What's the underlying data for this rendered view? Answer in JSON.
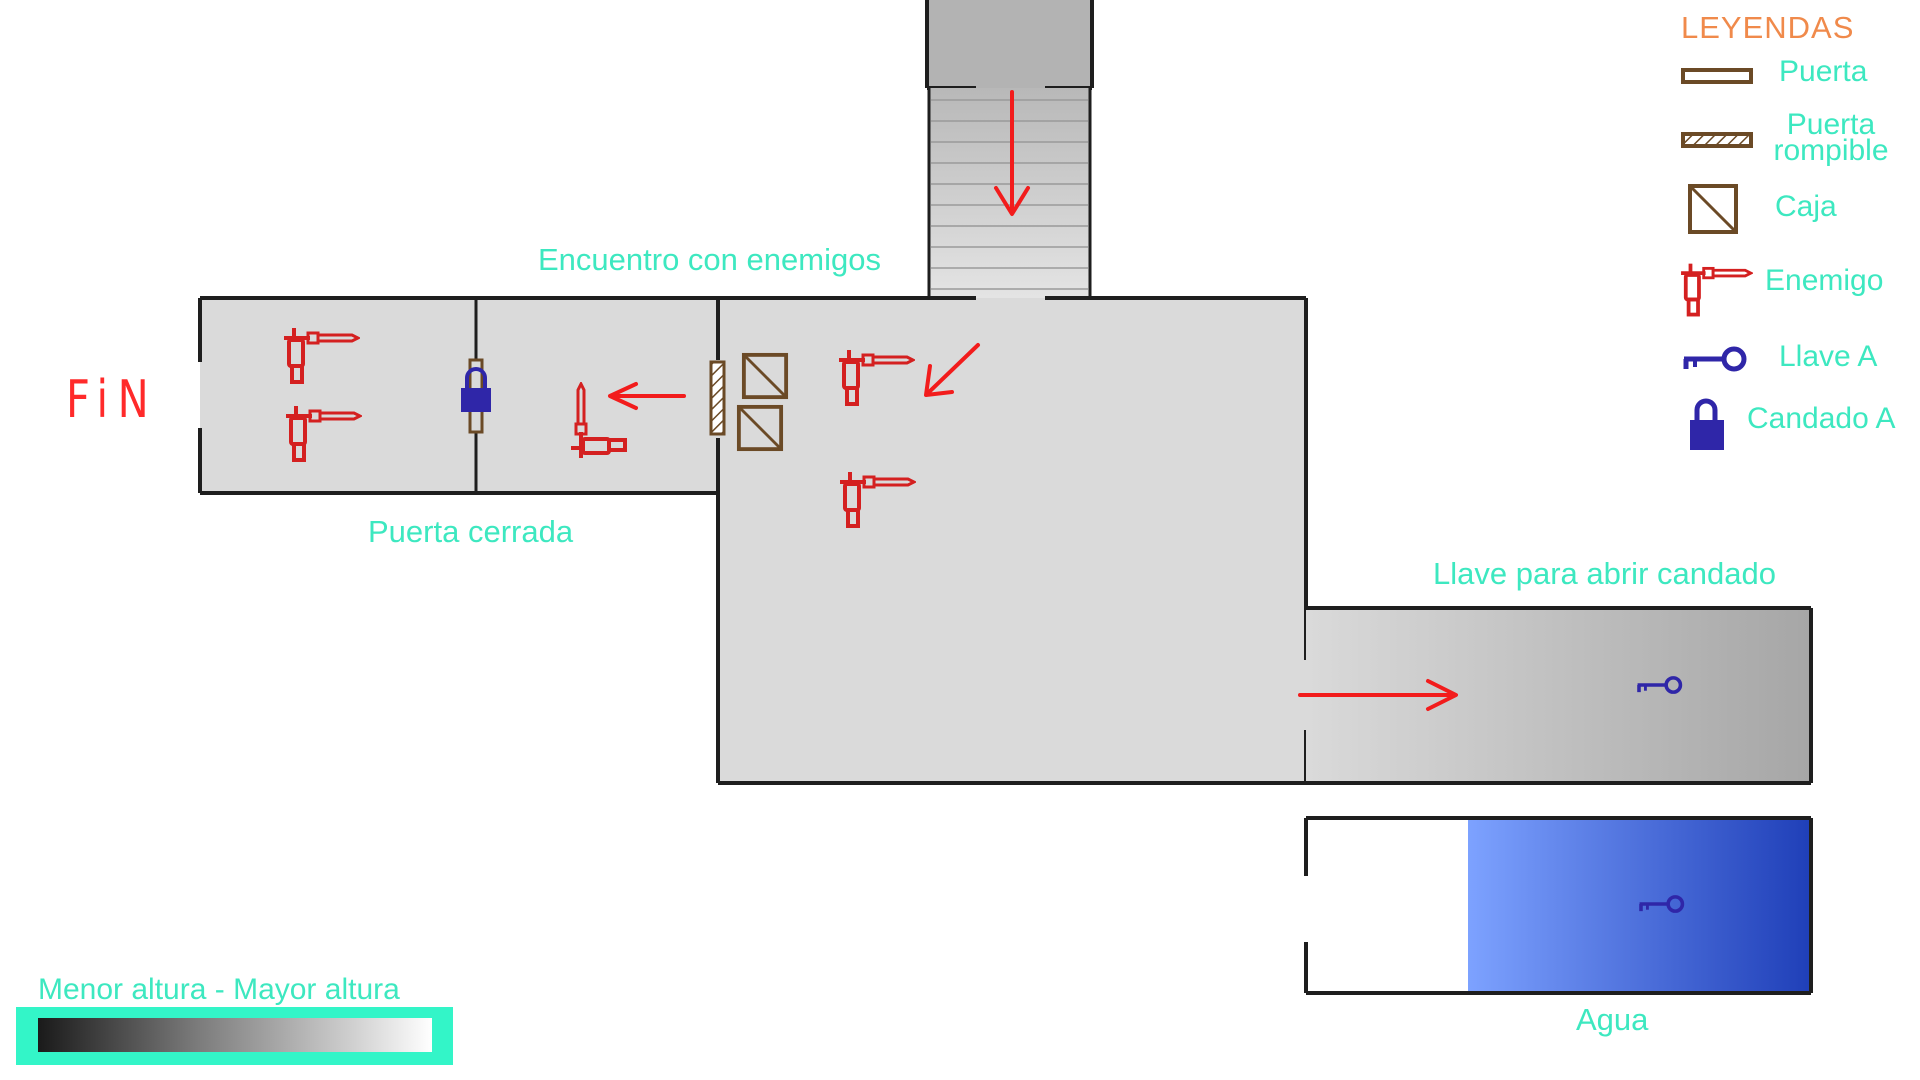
{
  "map": {
    "fin_label": "FiN",
    "labels": {
      "enemy_encounter": "Encuentro con enemigos",
      "closed_door": "Puerta cerrada",
      "key_to_open_lock": "Llave para abrir candado",
      "water": "Agua"
    },
    "colors": {
      "floor": "#dadada",
      "wall": "#1e1e1e",
      "enemy": "#d42020",
      "arrow": "#f21c1c",
      "door": "#6b4a26",
      "key": "#2f26a8",
      "lock": "#2f26a8",
      "water_light": "#7da2ff",
      "water_dark": "#1f3fb8",
      "label": "#3de8c0",
      "legend_title": "#f08a4b"
    }
  },
  "legend": {
    "title": "LEYENDAS",
    "items": [
      {
        "icon": "door-icon",
        "label": "Puerta"
      },
      {
        "icon": "breakable-door-icon",
        "label": "Puerta rompible"
      },
      {
        "icon": "box-icon",
        "label": "Caja"
      },
      {
        "icon": "enemy-icon",
        "label": "Enemigo"
      },
      {
        "icon": "key-icon",
        "label": "Llave A"
      },
      {
        "icon": "padlock-icon",
        "label": "Candado A"
      }
    ]
  },
  "height_scale": {
    "label": "Menor altura - Mayor altura"
  }
}
